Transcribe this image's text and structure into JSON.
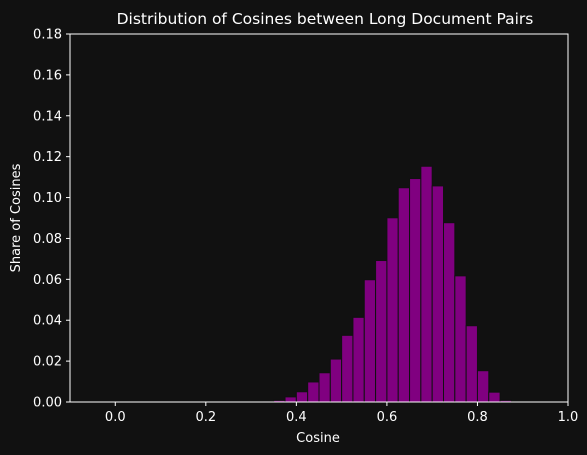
{
  "chart_data": {
    "type": "bar",
    "title": "Distribution of Cosines between Long Document Pairs",
    "xlabel": "Cosine",
    "ylabel": "Share of Cosines",
    "xlim": [
      -0.1,
      1.0
    ],
    "ylim": [
      0.0,
      0.18
    ],
    "xticks": [
      0.0,
      0.2,
      0.4,
      0.6,
      0.8,
      1.0
    ],
    "xtick_labels": [
      "0.0",
      "0.2",
      "0.4",
      "0.6",
      "0.8",
      "1.0"
    ],
    "yticks": [
      0.0,
      0.02,
      0.04,
      0.06,
      0.08,
      0.1,
      0.12,
      0.14,
      0.16,
      0.18
    ],
    "ytick_labels": [
      "0.00",
      "0.02",
      "0.04",
      "0.06",
      "0.08",
      "0.10",
      "0.12",
      "0.14",
      "0.16",
      "0.18"
    ],
    "grid": false,
    "bin_width": 0.025,
    "bins": [
      {
        "x0": 0.3,
        "value": 0.0003
      },
      {
        "x0": 0.325,
        "value": 0.0005
      },
      {
        "x0": 0.35,
        "value": 0.0008
      },
      {
        "x0": 0.375,
        "value": 0.0025
      },
      {
        "x0": 0.4,
        "value": 0.005
      },
      {
        "x0": 0.425,
        "value": 0.0098
      },
      {
        "x0": 0.45,
        "value": 0.0143
      },
      {
        "x0": 0.475,
        "value": 0.021
      },
      {
        "x0": 0.5,
        "value": 0.0326
      },
      {
        "x0": 0.525,
        "value": 0.0414
      },
      {
        "x0": 0.55,
        "value": 0.0598
      },
      {
        "x0": 0.575,
        "value": 0.0692
      },
      {
        "x0": 0.6,
        "value": 0.0901
      },
      {
        "x0": 0.625,
        "value": 0.1048
      },
      {
        "x0": 0.65,
        "value": 0.1093
      },
      {
        "x0": 0.675,
        "value": 0.1153
      },
      {
        "x0": 0.7,
        "value": 0.1057
      },
      {
        "x0": 0.725,
        "value": 0.0877
      },
      {
        "x0": 0.75,
        "value": 0.0617
      },
      {
        "x0": 0.775,
        "value": 0.0373
      },
      {
        "x0": 0.8,
        "value": 0.0153
      },
      {
        "x0": 0.825,
        "value": 0.0048
      },
      {
        "x0": 0.85,
        "value": 0.0008
      },
      {
        "x0": 0.875,
        "value": 0.0002
      }
    ],
    "bar_color": "#800080",
    "bar_edge_color": "#111111",
    "axis_color": "#ffffff",
    "background": "#111111"
  }
}
